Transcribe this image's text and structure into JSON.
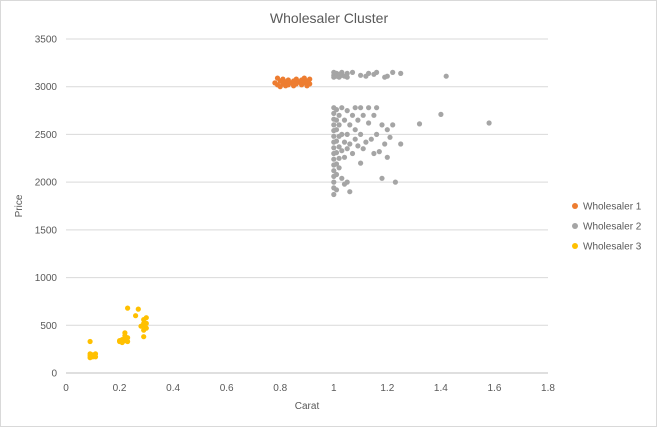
{
  "chart_data": {
    "type": "scatter",
    "title": "Wholesaler Cluster",
    "xlabel": "Carat",
    "ylabel": "Price",
    "xlim": [
      0,
      1.8
    ],
    "ylim": [
      0,
      3500
    ],
    "x_ticks": [
      0,
      0.2,
      0.4,
      0.6,
      0.8,
      1,
      1.2,
      1.4,
      1.6,
      1.8
    ],
    "y_ticks": [
      0,
      500,
      1000,
      1500,
      2000,
      2500,
      3000,
      3500
    ],
    "x_tick_labels": [
      "0",
      "0.2",
      "0.4",
      "0.6",
      "0.8",
      "1",
      "1.2",
      "1.4",
      "1.6",
      "1.8"
    ],
    "y_tick_labels": [
      "0",
      "500",
      "1000",
      "1500",
      "2000",
      "2500",
      "3000",
      "3500"
    ],
    "grid": "horizontal",
    "legend_position": "right",
    "series": [
      {
        "name": "Wholesaler 1",
        "color": "#ED7D31",
        "points": [
          [
            0.78,
            3040
          ],
          [
            0.79,
            3090
          ],
          [
            0.79,
            3020
          ],
          [
            0.8,
            3060
          ],
          [
            0.8,
            3000
          ],
          [
            0.81,
            3080
          ],
          [
            0.81,
            3030
          ],
          [
            0.82,
            3050
          ],
          [
            0.82,
            3010
          ],
          [
            0.83,
            3070
          ],
          [
            0.83,
            3020
          ],
          [
            0.84,
            3040
          ],
          [
            0.85,
            3060
          ],
          [
            0.85,
            3010
          ],
          [
            0.86,
            3030
          ],
          [
            0.86,
            3080
          ],
          [
            0.87,
            3050
          ],
          [
            0.88,
            3020
          ],
          [
            0.88,
            3070
          ],
          [
            0.89,
            3040
          ],
          [
            0.89,
            3090
          ],
          [
            0.9,
            3060
          ],
          [
            0.9,
            3010
          ],
          [
            0.91,
            3080
          ],
          [
            0.91,
            3030
          ]
        ]
      },
      {
        "name": "Wholesaler 2",
        "color": "#A5A5A5",
        "points": [
          [
            1.0,
            3150
          ],
          [
            1.0,
            3120
          ],
          [
            1.0,
            3100
          ],
          [
            1.01,
            3140
          ],
          [
            1.01,
            3110
          ],
          [
            1.02,
            3130
          ],
          [
            1.02,
            3100
          ],
          [
            1.03,
            3150
          ],
          [
            1.03,
            3120
          ],
          [
            1.04,
            3110
          ],
          [
            1.05,
            3140
          ],
          [
            1.05,
            3100
          ],
          [
            1.07,
            3150
          ],
          [
            1.1,
            3120
          ],
          [
            1.12,
            3110
          ],
          [
            1.13,
            3140
          ],
          [
            1.15,
            3130
          ],
          [
            1.16,
            3150
          ],
          [
            1.19,
            3100
          ],
          [
            1.2,
            3110
          ],
          [
            1.22,
            3150
          ],
          [
            1.25,
            3140
          ],
          [
            1.42,
            3110
          ],
          [
            1.0,
            2780
          ],
          [
            1.0,
            2720
          ],
          [
            1.0,
            2660
          ],
          [
            1.0,
            2600
          ],
          [
            1.0,
            2540
          ],
          [
            1.0,
            2480
          ],
          [
            1.0,
            2420
          ],
          [
            1.0,
            2360
          ],
          [
            1.0,
            2300
          ],
          [
            1.0,
            2240
          ],
          [
            1.0,
            2180
          ],
          [
            1.0,
            2120
          ],
          [
            1.0,
            2060
          ],
          [
            1.0,
            2000
          ],
          [
            1.0,
            1940
          ],
          [
            1.0,
            1870
          ],
          [
            1.01,
            2760
          ],
          [
            1.01,
            2650
          ],
          [
            1.01,
            2550
          ],
          [
            1.01,
            2430
          ],
          [
            1.01,
            2310
          ],
          [
            1.01,
            2190
          ],
          [
            1.01,
            2080
          ],
          [
            1.01,
            1920
          ],
          [
            1.02,
            2700
          ],
          [
            1.02,
            2600
          ],
          [
            1.02,
            2480
          ],
          [
            1.02,
            2370
          ],
          [
            1.02,
            2250
          ],
          [
            1.02,
            2150
          ],
          [
            1.03,
            2780
          ],
          [
            1.03,
            2500
          ],
          [
            1.03,
            2330
          ],
          [
            1.03,
            2040
          ],
          [
            1.04,
            2650
          ],
          [
            1.04,
            2420
          ],
          [
            1.04,
            2260
          ],
          [
            1.04,
            1980
          ],
          [
            1.05,
            2750
          ],
          [
            1.05,
            2500
          ],
          [
            1.05,
            2350
          ],
          [
            1.05,
            2000
          ],
          [
            1.06,
            2600
          ],
          [
            1.06,
            2400
          ],
          [
            1.06,
            1900
          ],
          [
            1.07,
            2700
          ],
          [
            1.07,
            2300
          ],
          [
            1.08,
            2780
          ],
          [
            1.08,
            2550
          ],
          [
            1.08,
            2450
          ],
          [
            1.09,
            2650
          ],
          [
            1.09,
            2380
          ],
          [
            1.1,
            2780
          ],
          [
            1.1,
            2500
          ],
          [
            1.1,
            2200
          ],
          [
            1.11,
            2700
          ],
          [
            1.11,
            2350
          ],
          [
            1.12,
            2420
          ],
          [
            1.13,
            2780
          ],
          [
            1.13,
            2620
          ],
          [
            1.14,
            2450
          ],
          [
            1.15,
            2300
          ],
          [
            1.15,
            2700
          ],
          [
            1.16,
            2780
          ],
          [
            1.16,
            2500
          ],
          [
            1.17,
            2320
          ],
          [
            1.18,
            2600
          ],
          [
            1.18,
            2040
          ],
          [
            1.19,
            2400
          ],
          [
            1.2,
            2550
          ],
          [
            1.2,
            2260
          ],
          [
            1.21,
            2470
          ],
          [
            1.22,
            2600
          ],
          [
            1.23,
            2000
          ],
          [
            1.25,
            2400
          ],
          [
            1.32,
            2610
          ],
          [
            1.4,
            2710
          ],
          [
            1.58,
            2620
          ]
        ]
      },
      {
        "name": "Wholesaler 3",
        "color": "#FFC000",
        "points": [
          [
            0.09,
            330
          ],
          [
            0.09,
            200
          ],
          [
            0.09,
            180
          ],
          [
            0.09,
            160
          ],
          [
            0.1,
            190
          ],
          [
            0.1,
            170
          ],
          [
            0.11,
            200
          ],
          [
            0.11,
            170
          ],
          [
            0.2,
            330
          ],
          [
            0.2,
            340
          ],
          [
            0.21,
            320
          ],
          [
            0.21,
            350
          ],
          [
            0.22,
            340
          ],
          [
            0.22,
            390
          ],
          [
            0.22,
            360
          ],
          [
            0.22,
            420
          ],
          [
            0.23,
            330
          ],
          [
            0.23,
            370
          ],
          [
            0.23,
            680
          ],
          [
            0.26,
            600
          ],
          [
            0.27,
            670
          ],
          [
            0.28,
            490
          ],
          [
            0.29,
            380
          ],
          [
            0.29,
            450
          ],
          [
            0.29,
            500
          ],
          [
            0.29,
            520
          ],
          [
            0.29,
            560
          ],
          [
            0.3,
            470
          ],
          [
            0.3,
            520
          ],
          [
            0.3,
            580
          ]
        ]
      }
    ]
  }
}
